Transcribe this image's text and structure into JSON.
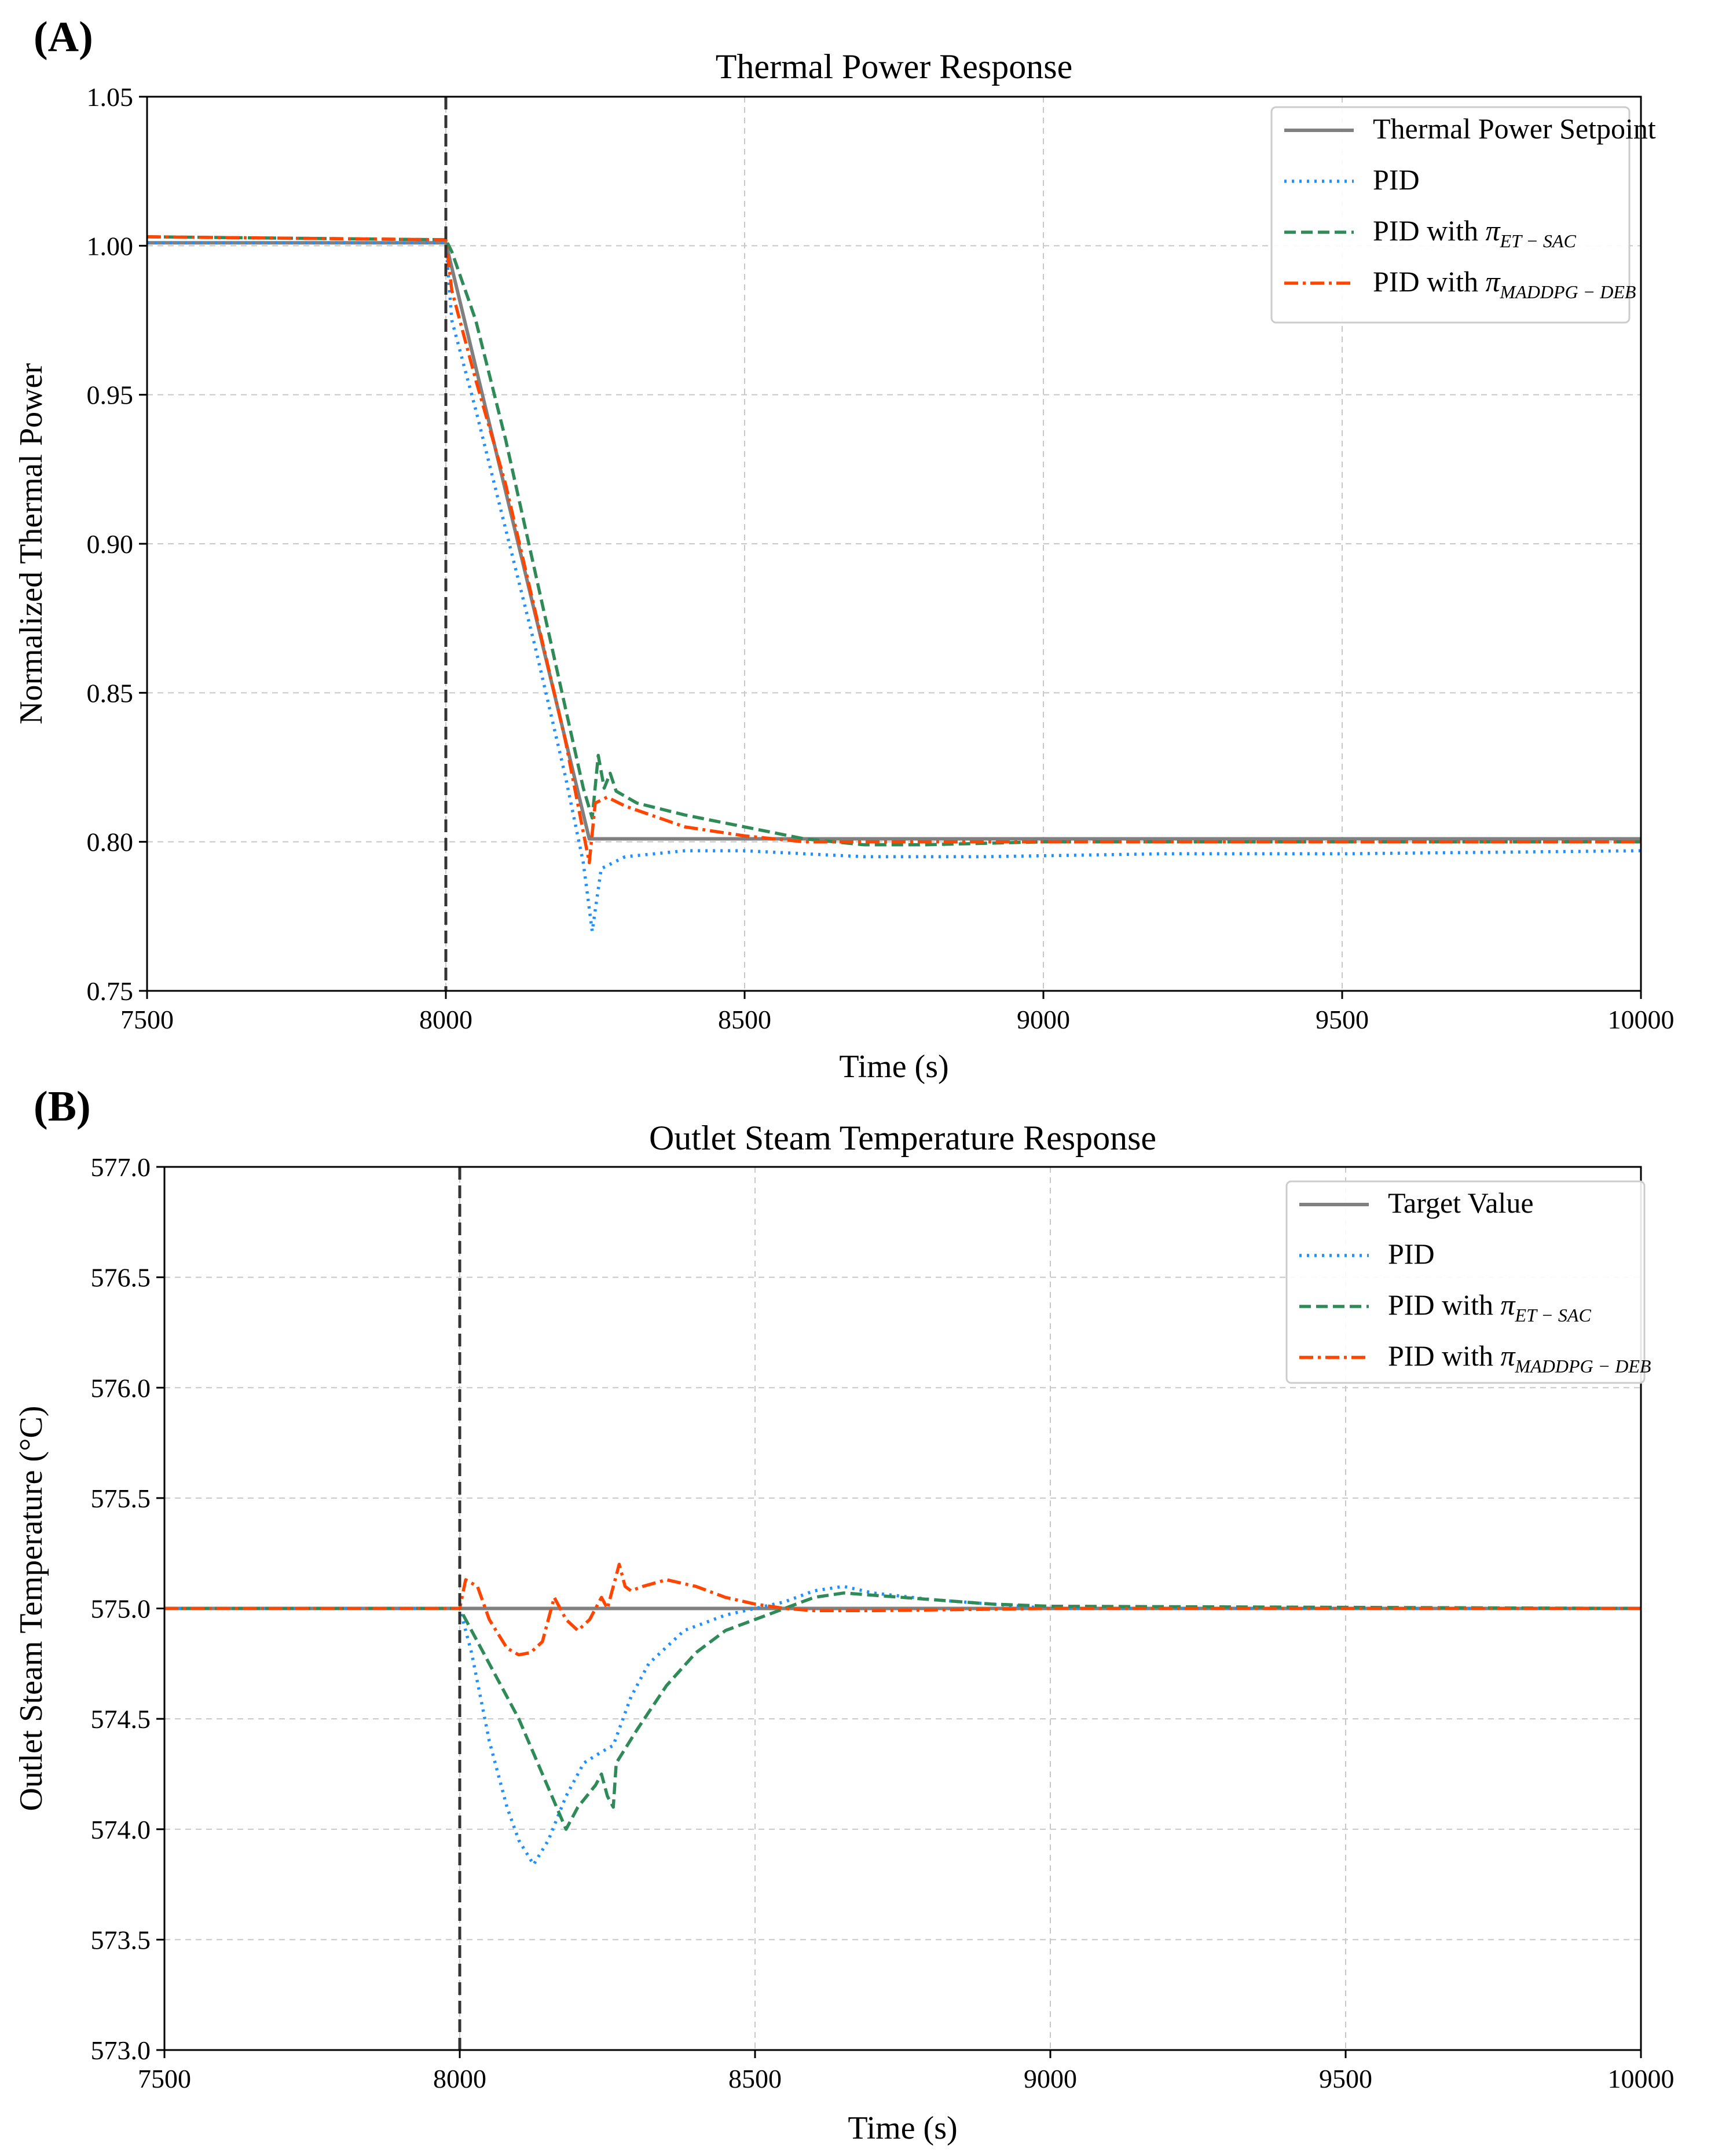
{
  "chart_data": [
    {
      "type": "line",
      "panel_label": "(A)",
      "title": "Thermal Power Response",
      "xlabel": "Time (s)",
      "ylabel": "Normalized Thermal Power",
      "xlim": [
        7500,
        10000
      ],
      "ylim": [
        0.75,
        1.05
      ],
      "xticks": [
        7500,
        8000,
        8500,
        9000,
        9500,
        10000
      ],
      "yticks": [
        0.75,
        0.8,
        0.85,
        0.9,
        0.95,
        1.0,
        1.05
      ],
      "ytick_labels": [
        "0.75",
        "0.80",
        "0.85",
        "0.90",
        "0.95",
        "1.00",
        "1.05"
      ],
      "grid": true,
      "legend_position": "top-right",
      "event_line_x": 8000,
      "series": [
        {
          "name": "Thermal Power Setpoint",
          "color": "#808080",
          "style": "solid",
          "points": [
            [
              7500,
              1.001
            ],
            [
              8000,
              1.001
            ],
            [
              8240,
              0.801
            ],
            [
              10000,
              0.801
            ]
          ]
        },
        {
          "name": "PID",
          "color": "#1E90FF",
          "style": "dotted",
          "points": [
            [
              7500,
              1.001
            ],
            [
              8000,
              1.001
            ],
            [
              8010,
              0.975
            ],
            [
              8050,
              0.945
            ],
            [
              8100,
              0.905
            ],
            [
              8150,
              0.865
            ],
            [
              8200,
              0.822
            ],
            [
              8230,
              0.793
            ],
            [
              8245,
              0.77
            ],
            [
              8260,
              0.791
            ],
            [
              8300,
              0.795
            ],
            [
              8400,
              0.797
            ],
            [
              8500,
              0.797
            ],
            [
              8600,
              0.796
            ],
            [
              8700,
              0.795
            ],
            [
              8900,
              0.795
            ],
            [
              9200,
              0.796
            ],
            [
              9500,
              0.796
            ],
            [
              10000,
              0.797
            ]
          ]
        },
        {
          "name": "PID with",
          "sub": "ET − SAC",
          "color": "#2E8B57",
          "style": "dashed",
          "points": [
            [
              7500,
              1.003
            ],
            [
              8000,
              1.002
            ],
            [
              8010,
              0.998
            ],
            [
              8050,
              0.975
            ],
            [
              8100,
              0.935
            ],
            [
              8150,
              0.89
            ],
            [
              8200,
              0.845
            ],
            [
              8230,
              0.818
            ],
            [
              8245,
              0.808
            ],
            [
              8255,
              0.829
            ],
            [
              8265,
              0.818
            ],
            [
              8275,
              0.823
            ],
            [
              8285,
              0.817
            ],
            [
              8320,
              0.813
            ],
            [
              8400,
              0.809
            ],
            [
              8500,
              0.805
            ],
            [
              8600,
              0.801
            ],
            [
              8700,
              0.799
            ],
            [
              8800,
              0.799
            ],
            [
              9000,
              0.8
            ],
            [
              10000,
              0.8
            ]
          ]
        },
        {
          "name": "PID with",
          "sub": "MADDPG − DEB",
          "color": "#FF4500",
          "style": "dashdot",
          "points": [
            [
              7500,
              1.003
            ],
            [
              8000,
              1.002
            ],
            [
              8010,
              0.985
            ],
            [
              8050,
              0.955
            ],
            [
              8100,
              0.92
            ],
            [
              8150,
              0.877
            ],
            [
              8200,
              0.834
            ],
            [
              8240,
              0.793
            ],
            [
              8250,
              0.813
            ],
            [
              8270,
              0.815
            ],
            [
              8300,
              0.812
            ],
            [
              8400,
              0.805
            ],
            [
              8500,
              0.802
            ],
            [
              8600,
              0.8
            ],
            [
              8700,
              0.8
            ],
            [
              9000,
              0.8
            ],
            [
              10000,
              0.8
            ]
          ]
        }
      ]
    },
    {
      "type": "line",
      "panel_label": "(B)",
      "title": "Outlet Steam Temperature Response",
      "xlabel": "Time (s)",
      "ylabel": "Outlet Steam Temperature (°C)",
      "xlim": [
        7500,
        10000
      ],
      "ylim": [
        573.0,
        577.0
      ],
      "xticks": [
        7500,
        8000,
        8500,
        9000,
        9500,
        10000
      ],
      "yticks": [
        573.0,
        573.5,
        574.0,
        574.5,
        575.0,
        575.5,
        576.0,
        576.5,
        577.0
      ],
      "ytick_labels": [
        "573.0",
        "573.5",
        "574.0",
        "574.5",
        "575.0",
        "575.5",
        "576.0",
        "576.5",
        "577.0"
      ],
      "grid": true,
      "legend_position": "top-right",
      "event_line_x": 8000,
      "series": [
        {
          "name": "Target Value",
          "color": "#808080",
          "style": "solid",
          "points": [
            [
              7500,
              575.0
            ],
            [
              10000,
              575.0
            ]
          ]
        },
        {
          "name": "PID",
          "color": "#1E90FF",
          "style": "dotted",
          "points": [
            [
              7500,
              575.0
            ],
            [
              8000,
              575.0
            ],
            [
              8020,
              574.8
            ],
            [
              8050,
              574.4
            ],
            [
              8080,
              574.1
            ],
            [
              8100,
              573.95
            ],
            [
              8125,
              573.84
            ],
            [
              8150,
              573.95
            ],
            [
              8180,
              574.15
            ],
            [
              8210,
              574.3
            ],
            [
              8240,
              574.35
            ],
            [
              8260,
              574.38
            ],
            [
              8290,
              574.6
            ],
            [
              8320,
              574.75
            ],
            [
              8380,
              574.9
            ],
            [
              8450,
              574.97
            ],
            [
              8500,
              575.0
            ],
            [
              8550,
              575.03
            ],
            [
              8600,
              575.08
            ],
            [
              8650,
              575.1
            ],
            [
              8700,
              575.07
            ],
            [
              8800,
              575.04
            ],
            [
              8900,
              575.02
            ],
            [
              9000,
              575.0
            ],
            [
              10000,
              575.0
            ]
          ]
        },
        {
          "name": "PID with",
          "sub": "ET − SAC",
          "color": "#2E8B57",
          "style": "dashed",
          "points": [
            [
              7500,
              575.0
            ],
            [
              8000,
              575.0
            ],
            [
              8030,
              574.85
            ],
            [
              8060,
              574.7
            ],
            [
              8100,
              574.5
            ],
            [
              8140,
              574.25
            ],
            [
              8180,
              574.0
            ],
            [
              8200,
              574.1
            ],
            [
              8230,
              574.2
            ],
            [
              8240,
              574.25
            ],
            [
              8250,
              574.15
            ],
            [
              8260,
              574.1
            ],
            [
              8265,
              574.3
            ],
            [
              8300,
              574.45
            ],
            [
              8350,
              574.65
            ],
            [
              8400,
              574.8
            ],
            [
              8450,
              574.9
            ],
            [
              8500,
              574.95
            ],
            [
              8550,
              575.0
            ],
            [
              8600,
              575.05
            ],
            [
              8650,
              575.07
            ],
            [
              8700,
              575.06
            ],
            [
              8800,
              575.04
            ],
            [
              8900,
              575.02
            ],
            [
              9000,
              575.01
            ],
            [
              10000,
              575.0
            ]
          ]
        },
        {
          "name": "PID with",
          "sub": "MADDPG − DEB",
          "color": "#FF4500",
          "style": "dashdot",
          "points": [
            [
              7500,
              575.0
            ],
            [
              8000,
              575.0
            ],
            [
              8010,
              575.13
            ],
            [
              8030,
              575.1
            ],
            [
              8050,
              574.95
            ],
            [
              8080,
              574.82
            ],
            [
              8100,
              574.79
            ],
            [
              8120,
              574.8
            ],
            [
              8140,
              574.85
            ],
            [
              8160,
              575.05
            ],
            [
              8180,
              574.95
            ],
            [
              8200,
              574.9
            ],
            [
              8220,
              574.95
            ],
            [
              8240,
              575.05
            ],
            [
              8250,
              575.0
            ],
            [
              8260,
              575.1
            ],
            [
              8270,
              575.2
            ],
            [
              8280,
              575.1
            ],
            [
              8290,
              575.08
            ],
            [
              8310,
              575.1
            ],
            [
              8350,
              575.13
            ],
            [
              8400,
              575.1
            ],
            [
              8450,
              575.05
            ],
            [
              8500,
              575.02
            ],
            [
              8550,
              575.0
            ],
            [
              8600,
              574.99
            ],
            [
              8700,
              574.99
            ],
            [
              9000,
              575.0
            ],
            [
              10000,
              575.0
            ]
          ]
        }
      ]
    }
  ]
}
